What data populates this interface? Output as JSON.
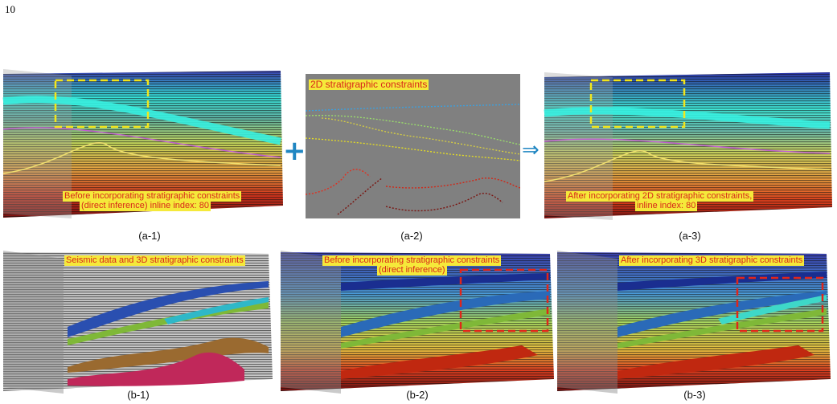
{
  "page_number": "10",
  "top_row": {
    "a1": {
      "caption": "(a-1)",
      "label_line1": "Before incorporating stratigraphic constraints",
      "label_line2": "(direct inference) inline index: 80"
    },
    "a2": {
      "caption": "(a-2)",
      "label": "2D stratigraphic constraints"
    },
    "a3": {
      "caption": "(a-3)",
      "label_line1": "After incorporating 2D stratigraphic constraints,",
      "label_line2": "inline index: 80"
    },
    "plus_symbol": "+",
    "arrow_symbol": "⇒"
  },
  "bottom_row": {
    "b1": {
      "caption": "(b-1)",
      "label": "Seismic data and 3D stratigraphic constraints"
    },
    "b2": {
      "caption": "(b-2)",
      "label_line1": "Before incorporating stratigraphic constraints",
      "label_line2": "(direct inference)"
    },
    "b3": {
      "caption": "(b-3)",
      "label": "After incorporating 3D stratigraphic constraints"
    }
  },
  "colors": {
    "highlight_box_top": "#f2e61d",
    "highlight_box_bottom": "#e0261a",
    "label_bg": "#f5e93a",
    "label_text": "#d8261a",
    "operator": "#1f86c2",
    "constraint_panel_bg": "#808080"
  }
}
